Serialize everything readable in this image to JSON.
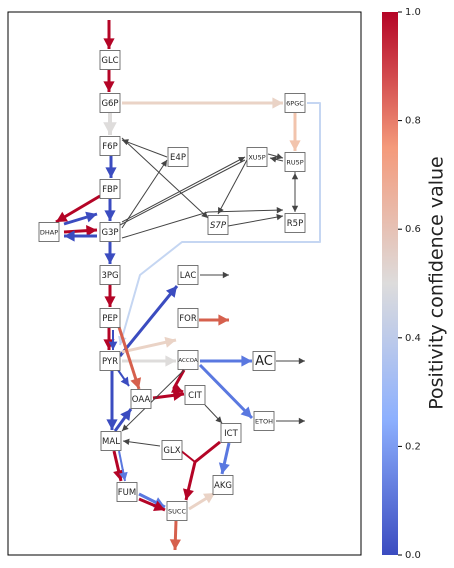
{
  "nodes": [
    {
      "label": "GLC"
    },
    {
      "label": "G6P"
    },
    {
      "label": "F6P"
    },
    {
      "label": "FBP"
    },
    {
      "label": "G3P"
    },
    {
      "label": "DHAP"
    },
    {
      "label": "3PG"
    },
    {
      "label": "PEP"
    },
    {
      "label": "PYR"
    },
    {
      "label": "E4P"
    },
    {
      "label": "XU5P"
    },
    {
      "label": "6PGC"
    },
    {
      "label": "RU5P"
    },
    {
      "label": "S7P"
    },
    {
      "label": "R5P"
    },
    {
      "label": "LAC"
    },
    {
      "label": "FOR"
    },
    {
      "label": "ACCOA"
    },
    {
      "label": "AC"
    },
    {
      "label": "CIT"
    },
    {
      "label": "OAA"
    },
    {
      "label": "ETOH"
    },
    {
      "label": "ICT"
    },
    {
      "label": "MAL"
    },
    {
      "label": "GLX"
    },
    {
      "label": "AKG"
    },
    {
      "label": "FUM"
    },
    {
      "label": "SUCC"
    }
  ],
  "colorbar": {
    "title": "Positivity confidence value",
    "lim": [
      0,
      1
    ],
    "ticks": [
      {
        "value": 0,
        "label": "0.0"
      },
      {
        "value": 0.2,
        "label": "0.2"
      },
      {
        "value": 0.4,
        "label": "0.4"
      },
      {
        "value": 0.6,
        "label": "0.6"
      },
      {
        "value": 0.8,
        "label": "0.8"
      },
      {
        "value": 1,
        "label": "1.0"
      }
    ]
  }
}
